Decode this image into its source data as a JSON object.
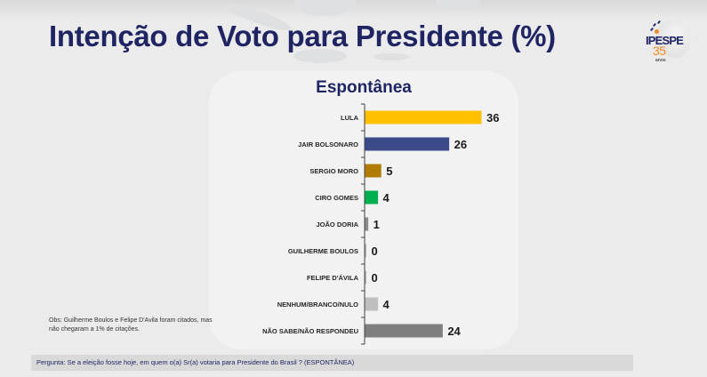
{
  "header": {
    "title": "Intenção de Voto para Presidente (%)",
    "logo": {
      "name": "IPESPE",
      "number": "35",
      "sub": "anos",
      "accent": "#f08a24",
      "brand": "#1f2462"
    }
  },
  "chart_data": {
    "type": "bar",
    "orientation": "horizontal",
    "title": "Espontânea",
    "xlabel": "",
    "ylabel": "",
    "xlim": [
      0,
      36
    ],
    "grid": false,
    "legend": "none",
    "categories": [
      "LULA",
      "JAIR BOLSONARO",
      "SERGIO MORO",
      "CIRO GOMES",
      "JOÃO DORIA",
      "GUILHERME BOULOS",
      "FELIPE D'ÁVILA",
      "NENHUM/BRANCO/NULO",
      "NÃO SABE/NÃO RESPONDEU"
    ],
    "values": [
      36,
      26,
      5,
      4,
      1,
      0,
      0,
      4,
      24
    ],
    "labels": [
      "36",
      "26",
      "5",
      "4",
      "1",
      "0",
      "0",
      "4",
      "24"
    ],
    "colors": [
      "#ffc000",
      "#3a4a8a",
      "#b07d00",
      "#00b050",
      "#8c8c8c",
      "#8c8c8c",
      "#8c8c8c",
      "#bfbfbf",
      "#7f7f7f"
    ]
  },
  "notes": {
    "obs": "Obs: Guilherme Boulos e Felipe D'Avila foram citados, mas não chegaram a 1% de citações.",
    "question": "Pergunta:  Se a eleição fosse hoje, em quem o(a) Sr(a) votaria para  Presidente do Brasil ? (ESPONTÂNEA)"
  }
}
